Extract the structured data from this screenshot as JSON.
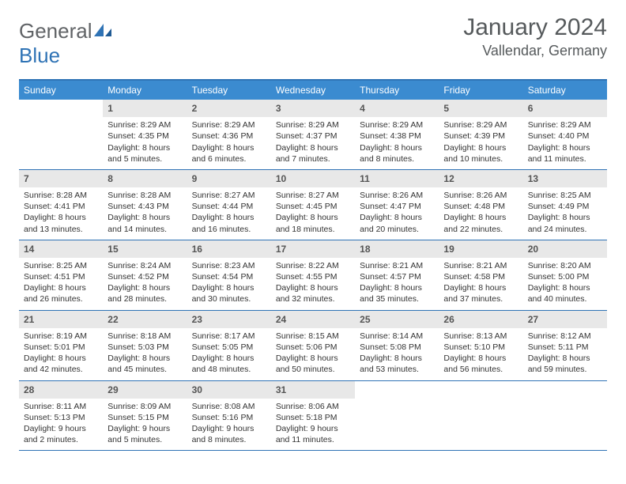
{
  "logo": {
    "word1": "General",
    "word2": "Blue"
  },
  "title": "January 2024",
  "location": "Vallendar, Germany",
  "header_bg": "#3b8bd0",
  "border_color": "#2f73b5",
  "daynum_bg": "#e8e8e8",
  "day_names": [
    "Sunday",
    "Monday",
    "Tuesday",
    "Wednesday",
    "Thursday",
    "Friday",
    "Saturday"
  ],
  "weeks": [
    [
      null,
      {
        "n": "1",
        "sr": "Sunrise: 8:29 AM",
        "ss": "Sunset: 4:35 PM",
        "dl": "Daylight: 8 hours and 5 minutes."
      },
      {
        "n": "2",
        "sr": "Sunrise: 8:29 AM",
        "ss": "Sunset: 4:36 PM",
        "dl": "Daylight: 8 hours and 6 minutes."
      },
      {
        "n": "3",
        "sr": "Sunrise: 8:29 AM",
        "ss": "Sunset: 4:37 PM",
        "dl": "Daylight: 8 hours and 7 minutes."
      },
      {
        "n": "4",
        "sr": "Sunrise: 8:29 AM",
        "ss": "Sunset: 4:38 PM",
        "dl": "Daylight: 8 hours and 8 minutes."
      },
      {
        "n": "5",
        "sr": "Sunrise: 8:29 AM",
        "ss": "Sunset: 4:39 PM",
        "dl": "Daylight: 8 hours and 10 minutes."
      },
      {
        "n": "6",
        "sr": "Sunrise: 8:29 AM",
        "ss": "Sunset: 4:40 PM",
        "dl": "Daylight: 8 hours and 11 minutes."
      }
    ],
    [
      {
        "n": "7",
        "sr": "Sunrise: 8:28 AM",
        "ss": "Sunset: 4:41 PM",
        "dl": "Daylight: 8 hours and 13 minutes."
      },
      {
        "n": "8",
        "sr": "Sunrise: 8:28 AM",
        "ss": "Sunset: 4:43 PM",
        "dl": "Daylight: 8 hours and 14 minutes."
      },
      {
        "n": "9",
        "sr": "Sunrise: 8:27 AM",
        "ss": "Sunset: 4:44 PM",
        "dl": "Daylight: 8 hours and 16 minutes."
      },
      {
        "n": "10",
        "sr": "Sunrise: 8:27 AM",
        "ss": "Sunset: 4:45 PM",
        "dl": "Daylight: 8 hours and 18 minutes."
      },
      {
        "n": "11",
        "sr": "Sunrise: 8:26 AM",
        "ss": "Sunset: 4:47 PM",
        "dl": "Daylight: 8 hours and 20 minutes."
      },
      {
        "n": "12",
        "sr": "Sunrise: 8:26 AM",
        "ss": "Sunset: 4:48 PM",
        "dl": "Daylight: 8 hours and 22 minutes."
      },
      {
        "n": "13",
        "sr": "Sunrise: 8:25 AM",
        "ss": "Sunset: 4:49 PM",
        "dl": "Daylight: 8 hours and 24 minutes."
      }
    ],
    [
      {
        "n": "14",
        "sr": "Sunrise: 8:25 AM",
        "ss": "Sunset: 4:51 PM",
        "dl": "Daylight: 8 hours and 26 minutes."
      },
      {
        "n": "15",
        "sr": "Sunrise: 8:24 AM",
        "ss": "Sunset: 4:52 PM",
        "dl": "Daylight: 8 hours and 28 minutes."
      },
      {
        "n": "16",
        "sr": "Sunrise: 8:23 AM",
        "ss": "Sunset: 4:54 PM",
        "dl": "Daylight: 8 hours and 30 minutes."
      },
      {
        "n": "17",
        "sr": "Sunrise: 8:22 AM",
        "ss": "Sunset: 4:55 PM",
        "dl": "Daylight: 8 hours and 32 minutes."
      },
      {
        "n": "18",
        "sr": "Sunrise: 8:21 AM",
        "ss": "Sunset: 4:57 PM",
        "dl": "Daylight: 8 hours and 35 minutes."
      },
      {
        "n": "19",
        "sr": "Sunrise: 8:21 AM",
        "ss": "Sunset: 4:58 PM",
        "dl": "Daylight: 8 hours and 37 minutes."
      },
      {
        "n": "20",
        "sr": "Sunrise: 8:20 AM",
        "ss": "Sunset: 5:00 PM",
        "dl": "Daylight: 8 hours and 40 minutes."
      }
    ],
    [
      {
        "n": "21",
        "sr": "Sunrise: 8:19 AM",
        "ss": "Sunset: 5:01 PM",
        "dl": "Daylight: 8 hours and 42 minutes."
      },
      {
        "n": "22",
        "sr": "Sunrise: 8:18 AM",
        "ss": "Sunset: 5:03 PM",
        "dl": "Daylight: 8 hours and 45 minutes."
      },
      {
        "n": "23",
        "sr": "Sunrise: 8:17 AM",
        "ss": "Sunset: 5:05 PM",
        "dl": "Daylight: 8 hours and 48 minutes."
      },
      {
        "n": "24",
        "sr": "Sunrise: 8:15 AM",
        "ss": "Sunset: 5:06 PM",
        "dl": "Daylight: 8 hours and 50 minutes."
      },
      {
        "n": "25",
        "sr": "Sunrise: 8:14 AM",
        "ss": "Sunset: 5:08 PM",
        "dl": "Daylight: 8 hours and 53 minutes."
      },
      {
        "n": "26",
        "sr": "Sunrise: 8:13 AM",
        "ss": "Sunset: 5:10 PM",
        "dl": "Daylight: 8 hours and 56 minutes."
      },
      {
        "n": "27",
        "sr": "Sunrise: 8:12 AM",
        "ss": "Sunset: 5:11 PM",
        "dl": "Daylight: 8 hours and 59 minutes."
      }
    ],
    [
      {
        "n": "28",
        "sr": "Sunrise: 8:11 AM",
        "ss": "Sunset: 5:13 PM",
        "dl": "Daylight: 9 hours and 2 minutes."
      },
      {
        "n": "29",
        "sr": "Sunrise: 8:09 AM",
        "ss": "Sunset: 5:15 PM",
        "dl": "Daylight: 9 hours and 5 minutes."
      },
      {
        "n": "30",
        "sr": "Sunrise: 8:08 AM",
        "ss": "Sunset: 5:16 PM",
        "dl": "Daylight: 9 hours and 8 minutes."
      },
      {
        "n": "31",
        "sr": "Sunrise: 8:06 AM",
        "ss": "Sunset: 5:18 PM",
        "dl": "Daylight: 9 hours and 11 minutes."
      },
      null,
      null,
      null
    ]
  ]
}
